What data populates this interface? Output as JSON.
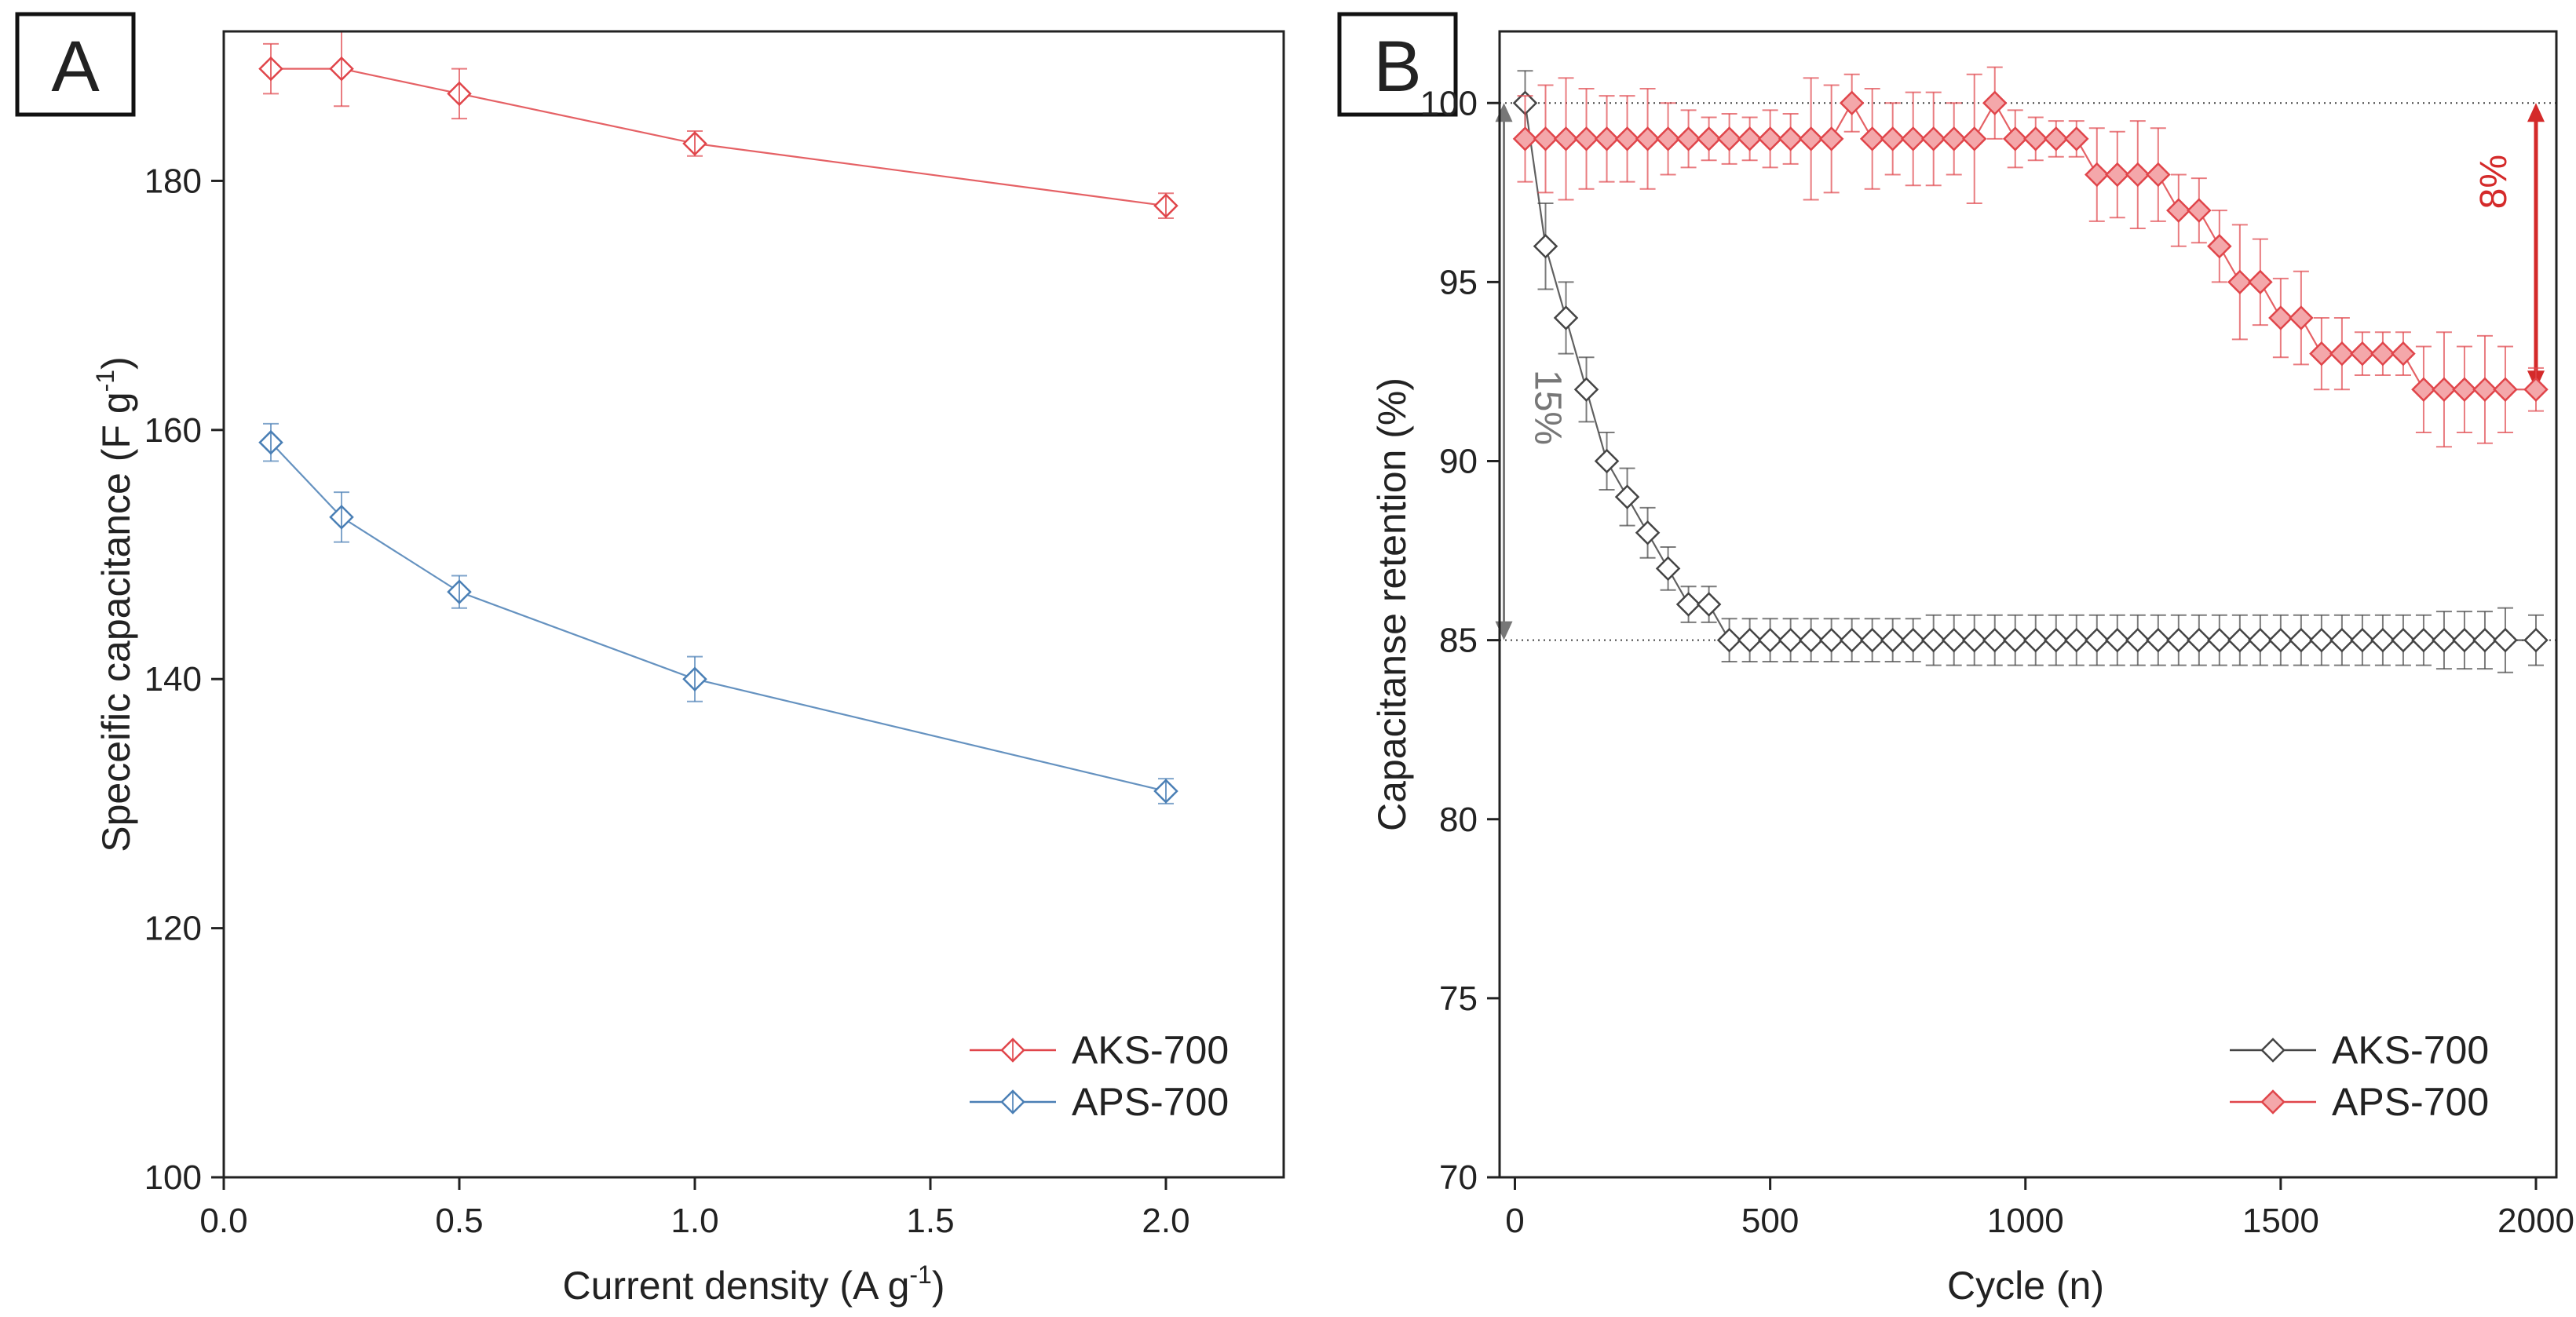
{
  "chart_data": [
    {
      "panel_label": "A",
      "type": "line",
      "xlabel": "Current density (A g",
      "xlabel_sup": "-1",
      "xlabel_end": ")",
      "ylabel": "Speceific capacitance (F g",
      "ylabel_sup": "-1",
      "ylabel_end": ")",
      "xlim": [
        0,
        2.25
      ],
      "ylim": [
        100,
        192
      ],
      "xticks": [
        0.0,
        0.5,
        1.0,
        1.5,
        2.0
      ],
      "xtick_labels": [
        "0.0",
        "0.5",
        "1.0",
        "1.5",
        "2.0"
      ],
      "yticks": [
        100,
        120,
        140,
        160,
        180
      ],
      "ytick_labels": [
        "100",
        "120",
        "140",
        "160",
        "180"
      ],
      "legend_position": "bottom-right",
      "series": [
        {
          "name": "AKS-700",
          "color": "#e0454a",
          "x": [
            0.1,
            0.25,
            0.5,
            1.0,
            2.0
          ],
          "values": [
            189,
            189,
            187,
            183,
            178
          ],
          "errors": [
            2,
            3,
            2,
            1,
            1
          ]
        },
        {
          "name": "APS-700",
          "color": "#4a7fb5",
          "x": [
            0.1,
            0.25,
            0.5,
            1.0,
            2.0
          ],
          "values": [
            159,
            153,
            147,
            140,
            131
          ],
          "errors": [
            1.5,
            2,
            1.3,
            1.8,
            1
          ]
        }
      ]
    },
    {
      "panel_label": "B",
      "type": "line",
      "xlabel": "Cycle (n)",
      "ylabel": "Capacitanse retention (%)",
      "xlim": [
        -30,
        2040
      ],
      "ylim": [
        70,
        102
      ],
      "xticks": [
        0,
        500,
        1000,
        1500,
        2000
      ],
      "xtick_labels": [
        "0",
        "500",
        "1000",
        "1500",
        "2000"
      ],
      "yticks": [
        70,
        75,
        80,
        85,
        90,
        95,
        100
      ],
      "ytick_labels": [
        "70",
        "75",
        "80",
        "85",
        "90",
        "95",
        "100"
      ],
      "reference_lines": [
        100,
        85
      ],
      "legend_position": "bottom-right",
      "annotations": [
        {
          "text": "15%",
          "color": "#777777",
          "from": 100,
          "to": 85,
          "x": 0
        },
        {
          "text": "8%",
          "color": "#d42a2a",
          "from": 100,
          "to": 92,
          "x": 2000
        }
      ],
      "series": [
        {
          "name": "AKS-700",
          "color": "#444444",
          "x": [
            20,
            60,
            100,
            140,
            180,
            220,
            260,
            300,
            340,
            380,
            420,
            460,
            500,
            540,
            580,
            620,
            660,
            700,
            740,
            780,
            820,
            860,
            900,
            940,
            980,
            1020,
            1060,
            1100,
            1140,
            1180,
            1220,
            1260,
            1300,
            1340,
            1380,
            1420,
            1460,
            1500,
            1540,
            1580,
            1620,
            1660,
            1700,
            1740,
            1780,
            1820,
            1860,
            1900,
            1940,
            2000
          ],
          "values": [
            100,
            96,
            94,
            92,
            90,
            89,
            88,
            87,
            86,
            86,
            85,
            85,
            85,
            85,
            85,
            85,
            85,
            85,
            85,
            85,
            85,
            85,
            85,
            85,
            85,
            85,
            85,
            85,
            85,
            85,
            85,
            85,
            85,
            85,
            85,
            85,
            85,
            85,
            85,
            85,
            85,
            85,
            85,
            85,
            85,
            85,
            85,
            85,
            85,
            85
          ],
          "errors": [
            0.9,
            1.2,
            1,
            0.9,
            0.8,
            0.8,
            0.7,
            0.6,
            0.5,
            0.5,
            0.6,
            0.6,
            0.6,
            0.6,
            0.6,
            0.6,
            0.6,
            0.6,
            0.6,
            0.6,
            0.7,
            0.7,
            0.7,
            0.7,
            0.7,
            0.7,
            0.7,
            0.7,
            0.7,
            0.7,
            0.7,
            0.7,
            0.7,
            0.7,
            0.7,
            0.7,
            0.7,
            0.7,
            0.7,
            0.7,
            0.7,
            0.7,
            0.7,
            0.7,
            0.7,
            0.8,
            0.8,
            0.8,
            0.9,
            0.7
          ]
        },
        {
          "name": "APS-700",
          "color": "#e0454a",
          "x": [
            20,
            60,
            100,
            140,
            180,
            220,
            260,
            300,
            340,
            380,
            420,
            460,
            500,
            540,
            580,
            620,
            660,
            700,
            740,
            780,
            820,
            860,
            900,
            940,
            980,
            1020,
            1060,
            1100,
            1140,
            1180,
            1220,
            1260,
            1300,
            1340,
            1380,
            1420,
            1460,
            1500,
            1540,
            1580,
            1620,
            1660,
            1700,
            1740,
            1780,
            1820,
            1860,
            1900,
            1940,
            2000
          ],
          "values": [
            99,
            99,
            99,
            99,
            99,
            99,
            99,
            99,
            99,
            99,
            99,
            99,
            99,
            99,
            99,
            99,
            100,
            99,
            99,
            99,
            99,
            99,
            99,
            100,
            99,
            99,
            99,
            99,
            98,
            98,
            98,
            98,
            97,
            97,
            96,
            95,
            95,
            94,
            94,
            93,
            93,
            93,
            93,
            93,
            92,
            92,
            92,
            92,
            92,
            92
          ],
          "errors": [
            1.2,
            1.5,
            1.7,
            1.4,
            1.2,
            1.2,
            1.4,
            1,
            0.8,
            0.6,
            0.7,
            0.6,
            0.8,
            0.7,
            1.7,
            1.5,
            0.8,
            1.4,
            1,
            1.3,
            1.3,
            1,
            1.8,
            1,
            0.8,
            0.6,
            0.5,
            0.5,
            1.3,
            1.2,
            1.5,
            1.3,
            1,
            0.9,
            1,
            1.6,
            1.2,
            1.1,
            1.3,
            1,
            1,
            0.6,
            0.6,
            0.6,
            1.2,
            1.6,
            1.2,
            1.5,
            1.2,
            0.6
          ]
        }
      ]
    }
  ]
}
